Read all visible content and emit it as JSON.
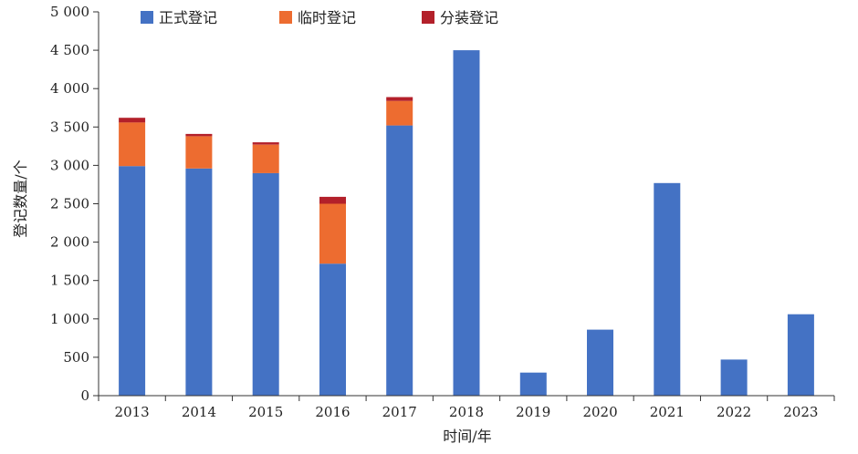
{
  "chart_data": {
    "type": "bar",
    "stacked": true,
    "categories": [
      "2013",
      "2014",
      "2015",
      "2016",
      "2017",
      "2018",
      "2019",
      "2020",
      "2021",
      "2022",
      "2023"
    ],
    "series": [
      {
        "name": "正式登记",
        "color": "#4472C4",
        "values": [
          2990,
          2960,
          2900,
          1720,
          3520,
          4500,
          300,
          860,
          2770,
          470,
          1060
        ]
      },
      {
        "name": "临时登记",
        "color": "#ED6C30",
        "values": [
          570,
          420,
          370,
          780,
          320,
          0,
          0,
          0,
          0,
          0,
          0
        ]
      },
      {
        "name": "分装登记",
        "color": "#B3202A",
        "values": [
          60,
          30,
          30,
          90,
          50,
          0,
          0,
          0,
          0,
          0,
          0
        ]
      }
    ],
    "xlabel": "时间/年",
    "ylabel": "登记数量/个",
    "ylim": [
      0,
      5000
    ],
    "yticks": [
      0,
      500,
      1000,
      1500,
      2000,
      2500,
      3000,
      3500,
      4000,
      4500,
      5000
    ],
    "ytick_labels": [
      "0",
      "500",
      "1 000",
      "1 500",
      "2 000",
      "2 500",
      "3 000",
      "3 500",
      "4 000",
      "4 500",
      "5 000"
    ],
    "grid": false,
    "legend_position": "top-left"
  }
}
